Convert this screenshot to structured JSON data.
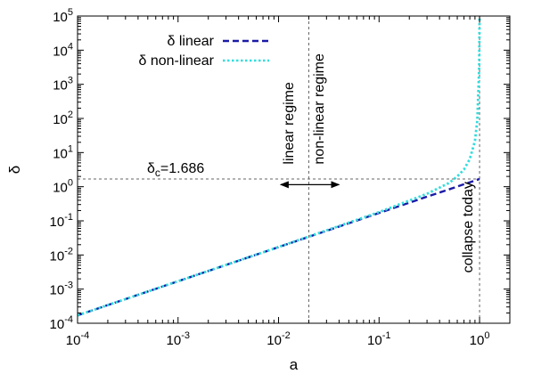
{
  "chart_data": {
    "type": "line",
    "title": "",
    "xlabel": "a",
    "ylabel": "δ",
    "xscale": "log",
    "yscale": "log",
    "xlim": [
      0.0001,
      2
    ],
    "ylim": [
      0.0001,
      100000
    ],
    "x_ticks": [
      {
        "value": 0.0001,
        "base": "10",
        "exp": "-4"
      },
      {
        "value": 0.001,
        "base": "10",
        "exp": "-3"
      },
      {
        "value": 0.01,
        "base": "10",
        "exp": "-2"
      },
      {
        "value": 0.1,
        "base": "10",
        "exp": "-1"
      },
      {
        "value": 1,
        "base": "10",
        "exp": "0"
      }
    ],
    "y_ticks": [
      {
        "value": 0.0001,
        "base": "10",
        "exp": "-4"
      },
      {
        "value": 0.001,
        "base": "10",
        "exp": "-3"
      },
      {
        "value": 0.01,
        "base": "10",
        "exp": "-2"
      },
      {
        "value": 0.1,
        "base": "10",
        "exp": "-1"
      },
      {
        "value": 1,
        "base": "10",
        "exp": "0"
      },
      {
        "value": 10,
        "base": "10",
        "exp": "1"
      },
      {
        "value": 100,
        "base": "10",
        "exp": "2"
      },
      {
        "value": 1000,
        "base": "10",
        "exp": "3"
      },
      {
        "value": 10000,
        "base": "10",
        "exp": "4"
      },
      {
        "value": 100000,
        "base": "10",
        "exp": "5"
      }
    ],
    "grid": false,
    "legend": "top-left",
    "series": [
      {
        "name": "δ linear",
        "color": "#1a1aa8",
        "dash": "dashed",
        "x": [
          0.0001,
          0.001,
          0.01,
          0.1,
          0.3,
          0.5,
          0.7,
          1.0
        ],
        "y": [
          0.00017,
          0.0017,
          0.017,
          0.17,
          0.51,
          0.84,
          1.18,
          1.686
        ]
      },
      {
        "name": "δ non-linear",
        "color": "#33dddd",
        "dash": "dotted",
        "x": [
          0.0001,
          0.001,
          0.01,
          0.1,
          0.3,
          0.5,
          0.6,
          0.7,
          0.8,
          0.9,
          0.95,
          0.99,
          1.0
        ],
        "y": [
          0.00017,
          0.0017,
          0.0171,
          0.18,
          0.62,
          1.3,
          2.0,
          3.2,
          6.5,
          22,
          90,
          3000,
          100000
        ]
      }
    ],
    "reference_lines": [
      {
        "orientation": "horizontal",
        "value": 1.686,
        "style": "dotted",
        "label_base": "δ",
        "label_sub": "c",
        "label_rest": "=1.686"
      },
      {
        "orientation": "vertical",
        "value": 0.02,
        "style": "dotted"
      },
      {
        "orientation": "vertical",
        "value": 1.0,
        "style": "dotted"
      }
    ],
    "annotations": [
      {
        "text": "linear regime",
        "x": 0.014,
        "y": 4.5,
        "rotation": -90
      },
      {
        "text": "non-linear regime",
        "x": 0.028,
        "y": 4.5,
        "rotation": -90
      },
      {
        "text": "collapse today",
        "x": 0.85,
        "y": 0.003,
        "rotation": -90
      }
    ],
    "arrow": {
      "x_from": 0.0105,
      "x_to": 0.04,
      "y": 1.15
    }
  }
}
